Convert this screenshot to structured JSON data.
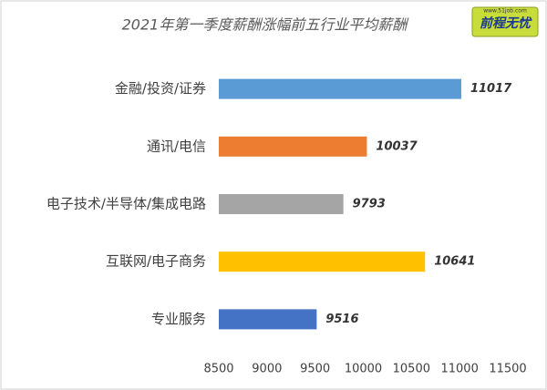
{
  "chart_data": {
    "type": "hbar",
    "title": "2021年第一季度薪酬涨幅前五行业平均薪酬",
    "logo_text": "前程无忧",
    "logo_url": "www.51job.com",
    "categories": [
      "金融/投资/证券",
      "通讯/电信",
      "电子技术/半导体/集成电路",
      "互联网/电子商务",
      "专业服务"
    ],
    "values": [
      11017,
      10037,
      9793,
      10641,
      9516
    ],
    "colors": [
      "#5b9bd5",
      "#ed7d31",
      "#a5a5a5",
      "#ffc000",
      "#4472c4"
    ],
    "xlim": [
      8500,
      11500
    ],
    "xticks": [
      8500,
      9000,
      9500,
      10000,
      10500,
      11000,
      11500
    ]
  }
}
